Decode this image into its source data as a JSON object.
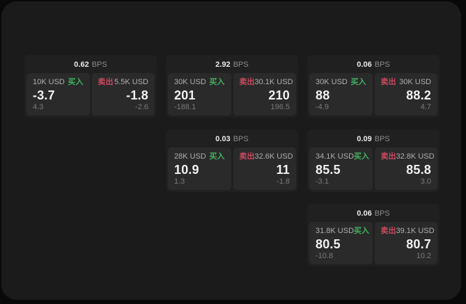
{
  "labels": {
    "bps_unit": "BPS",
    "buy": "买入",
    "sell": "卖出"
  },
  "colors": {
    "page_bg": "#09090a",
    "panel_bg": "#1b1b1c",
    "card_bg": "#202021",
    "subpanel_bg": "#2a2a2b",
    "buy_green": "#43b05f",
    "sell_red": "#c9495f"
  },
  "cards": [
    {
      "bps": "0.62",
      "buy": {
        "amount": "10K USD",
        "price": "-3.7",
        "delta": "4.3"
      },
      "sell": {
        "amount": "5.5K USD",
        "price": "-1.8",
        "delta": "-2.6"
      }
    },
    {
      "bps": "2.92",
      "buy": {
        "amount": "30K USD",
        "price": "201",
        "delta": "-188.1"
      },
      "sell": {
        "amount": "30.1K USD",
        "price": "210",
        "delta": "196.5"
      }
    },
    {
      "bps": "0.06",
      "buy": {
        "amount": "30K USD",
        "price": "88",
        "delta": "-4.9"
      },
      "sell": {
        "amount": "30K USD",
        "price": "88.2",
        "delta": "4.7"
      }
    },
    {
      "bps": "0.03",
      "buy": {
        "amount": "28K USD",
        "price": "10.9",
        "delta": "1.3"
      },
      "sell": {
        "amount": "32.6K USD",
        "price": "11",
        "delta": "-1.8"
      }
    },
    {
      "bps": "0.09",
      "buy": {
        "amount": "34.1K USD",
        "price": "85.5",
        "delta": "-3.1"
      },
      "sell": {
        "amount": "32.8K USD",
        "price": "85.8",
        "delta": "3.0"
      }
    },
    {
      "bps": "0.06",
      "buy": {
        "amount": "31.8K USD",
        "price": "80.5",
        "delta": "-10.8"
      },
      "sell": {
        "amount": "39.1K USD",
        "price": "80.7",
        "delta": "10.2"
      }
    }
  ]
}
